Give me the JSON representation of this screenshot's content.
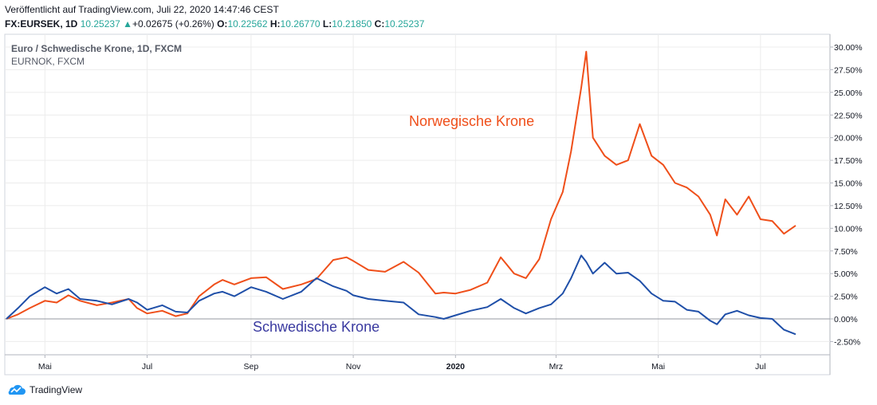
{
  "header": {
    "published": "Veröffentlicht auf TradingView.com, Juli 22, 2020 14:47:46 CEST",
    "symbol": "FX:EURSEK, 1D",
    "last": "10.25237",
    "up_arrow": "▲",
    "change": "+0.02675 (+0.26%)",
    "o_label": "O:",
    "o_value": "10.22562",
    "h_label": "H:",
    "h_value": "10.26770",
    "l_label": "L:",
    "l_value": "10.21850",
    "c_label": "C:",
    "c_value": "10.25237"
  },
  "legend": {
    "main": "Euro / Schwedische Krone, 1D, FXCM",
    "compare": "EURNOK, FXCM"
  },
  "annotations": {
    "nok": "Norwegische Krone",
    "sek": "Schwedische Krone"
  },
  "footer": {
    "brand": "TradingView"
  },
  "colors": {
    "nok": "#ef4f1a",
    "sek": "#1f4fa8",
    "grid": "#ececec",
    "axis": "#787b86"
  },
  "chart_data": {
    "type": "line",
    "y_unit": "%",
    "ylim": [
      -4,
      30.5
    ],
    "y_ticks": [
      "30.00%",
      "27.50%",
      "25.00%",
      "22.50%",
      "20.00%",
      "17.50%",
      "15.00%",
      "12.50%",
      "10.00%",
      "7.50%",
      "5.00%",
      "2.50%",
      "0.00%",
      "-2.50%"
    ],
    "x_ticks": [
      "Mai",
      "Jul",
      "Sep",
      "Nov",
      "2020",
      "Mrz",
      "Mai",
      "Jul"
    ],
    "x_tick_dates": [
      "2019-05-01",
      "2019-07-01",
      "2019-09-01",
      "2019-11-01",
      "2020-01-01",
      "2020-03-01",
      "2020-05-01",
      "2020-07-01"
    ],
    "series": [
      {
        "name": "Norwegische Krone",
        "color": "#ef4f1a",
        "points": [
          [
            "2019-04-08",
            0.0
          ],
          [
            "2019-04-15",
            0.5
          ],
          [
            "2019-04-22",
            1.2
          ],
          [
            "2019-05-01",
            2.0
          ],
          [
            "2019-05-08",
            1.8
          ],
          [
            "2019-05-15",
            2.6
          ],
          [
            "2019-05-22",
            2.0
          ],
          [
            "2019-06-01",
            1.5
          ],
          [
            "2019-06-10",
            1.8
          ],
          [
            "2019-06-20",
            2.2
          ],
          [
            "2019-06-25",
            1.2
          ],
          [
            "2019-07-01",
            0.6
          ],
          [
            "2019-07-10",
            0.9
          ],
          [
            "2019-07-18",
            0.3
          ],
          [
            "2019-07-25",
            0.6
          ],
          [
            "2019-08-01",
            2.5
          ],
          [
            "2019-08-10",
            3.8
          ],
          [
            "2019-08-15",
            4.3
          ],
          [
            "2019-08-22",
            3.8
          ],
          [
            "2019-09-01",
            4.5
          ],
          [
            "2019-09-10",
            4.6
          ],
          [
            "2019-09-20",
            3.3
          ],
          [
            "2019-10-01",
            3.8
          ],
          [
            "2019-10-10",
            4.4
          ],
          [
            "2019-10-20",
            6.5
          ],
          [
            "2019-10-28",
            6.8
          ],
          [
            "2019-11-01",
            6.4
          ],
          [
            "2019-11-10",
            5.4
          ],
          [
            "2019-11-20",
            5.2
          ],
          [
            "2019-12-01",
            6.3
          ],
          [
            "2019-12-10",
            5.1
          ],
          [
            "2019-12-20",
            2.8
          ],
          [
            "2019-12-25",
            2.9
          ],
          [
            "2020-01-01",
            2.8
          ],
          [
            "2020-01-10",
            3.2
          ],
          [
            "2020-01-20",
            4.0
          ],
          [
            "2020-01-28",
            6.8
          ],
          [
            "2020-02-05",
            5.0
          ],
          [
            "2020-02-12",
            4.5
          ],
          [
            "2020-02-20",
            6.6
          ],
          [
            "2020-02-27",
            11.0
          ],
          [
            "2020-03-05",
            14.0
          ],
          [
            "2020-03-10",
            18.5
          ],
          [
            "2020-03-16",
            25.5
          ],
          [
            "2020-03-19",
            29.5
          ],
          [
            "2020-03-23",
            20.0
          ],
          [
            "2020-03-30",
            18.0
          ],
          [
            "2020-04-06",
            17.0
          ],
          [
            "2020-04-13",
            17.5
          ],
          [
            "2020-04-20",
            21.5
          ],
          [
            "2020-04-27",
            18.0
          ],
          [
            "2020-05-04",
            17.0
          ],
          [
            "2020-05-11",
            15.0
          ],
          [
            "2020-05-18",
            14.5
          ],
          [
            "2020-05-25",
            13.5
          ],
          [
            "2020-06-01",
            11.5
          ],
          [
            "2020-06-05",
            9.2
          ],
          [
            "2020-06-10",
            13.2
          ],
          [
            "2020-06-17",
            11.5
          ],
          [
            "2020-06-24",
            13.5
          ],
          [
            "2020-07-01",
            11.0
          ],
          [
            "2020-07-08",
            10.8
          ],
          [
            "2020-07-15",
            9.4
          ],
          [
            "2020-07-22",
            10.3
          ]
        ]
      },
      {
        "name": "Schwedische Krone",
        "color": "#1f4fa8",
        "points": [
          [
            "2019-04-08",
            0.0
          ],
          [
            "2019-04-15",
            1.2
          ],
          [
            "2019-04-22",
            2.5
          ],
          [
            "2019-05-01",
            3.5
          ],
          [
            "2019-05-08",
            2.8
          ],
          [
            "2019-05-15",
            3.3
          ],
          [
            "2019-05-22",
            2.2
          ],
          [
            "2019-06-01",
            2.0
          ],
          [
            "2019-06-10",
            1.6
          ],
          [
            "2019-06-20",
            2.2
          ],
          [
            "2019-06-25",
            1.8
          ],
          [
            "2019-07-01",
            1.0
          ],
          [
            "2019-07-10",
            1.5
          ],
          [
            "2019-07-18",
            0.8
          ],
          [
            "2019-07-25",
            0.7
          ],
          [
            "2019-08-01",
            2.0
          ],
          [
            "2019-08-10",
            2.8
          ],
          [
            "2019-08-15",
            3.0
          ],
          [
            "2019-08-22",
            2.5
          ],
          [
            "2019-09-01",
            3.5
          ],
          [
            "2019-09-10",
            3.0
          ],
          [
            "2019-09-20",
            2.2
          ],
          [
            "2019-10-01",
            3.0
          ],
          [
            "2019-10-10",
            4.5
          ],
          [
            "2019-10-20",
            3.6
          ],
          [
            "2019-10-28",
            3.1
          ],
          [
            "2019-11-01",
            2.6
          ],
          [
            "2019-11-10",
            2.2
          ],
          [
            "2019-11-20",
            2.0
          ],
          [
            "2019-12-01",
            1.8
          ],
          [
            "2019-12-10",
            0.5
          ],
          [
            "2019-12-20",
            0.2
          ],
          [
            "2019-12-25",
            0.0
          ],
          [
            "2020-01-01",
            0.4
          ],
          [
            "2020-01-10",
            0.9
          ],
          [
            "2020-01-20",
            1.3
          ],
          [
            "2020-01-28",
            2.2
          ],
          [
            "2020-02-05",
            1.2
          ],
          [
            "2020-02-12",
            0.6
          ],
          [
            "2020-02-20",
            1.2
          ],
          [
            "2020-02-27",
            1.6
          ],
          [
            "2020-03-05",
            2.8
          ],
          [
            "2020-03-10",
            4.5
          ],
          [
            "2020-03-16",
            7.0
          ],
          [
            "2020-03-19",
            6.3
          ],
          [
            "2020-03-23",
            5.0
          ],
          [
            "2020-03-30",
            6.2
          ],
          [
            "2020-04-06",
            5.0
          ],
          [
            "2020-04-13",
            5.1
          ],
          [
            "2020-04-20",
            4.2
          ],
          [
            "2020-04-27",
            2.8
          ],
          [
            "2020-05-04",
            2.0
          ],
          [
            "2020-05-11",
            1.9
          ],
          [
            "2020-05-18",
            1.0
          ],
          [
            "2020-05-25",
            0.8
          ],
          [
            "2020-06-01",
            -0.2
          ],
          [
            "2020-06-05",
            -0.6
          ],
          [
            "2020-06-10",
            0.5
          ],
          [
            "2020-06-17",
            0.9
          ],
          [
            "2020-06-24",
            0.4
          ],
          [
            "2020-07-01",
            0.1
          ],
          [
            "2020-07-08",
            0.0
          ],
          [
            "2020-07-15",
            -1.2
          ],
          [
            "2020-07-22",
            -1.7
          ]
        ]
      }
    ]
  }
}
